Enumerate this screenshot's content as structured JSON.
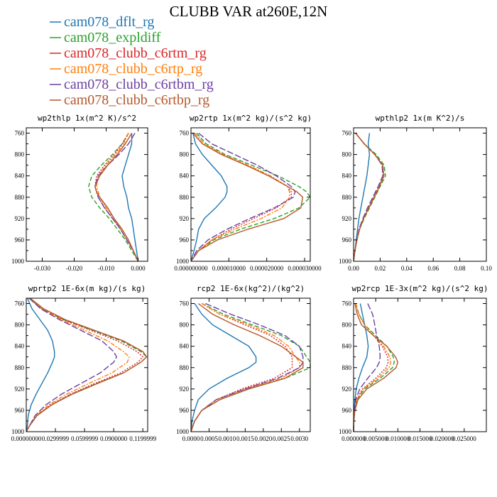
{
  "title": "CLUBB VAR at260E,12N",
  "colors": {
    "cam078_dflt_rg": "#1f77b4",
    "cam078_expldiff": "#2ca02c",
    "cam078_clubb_c6rtm_rg": "#d62728",
    "cam078_clubb_c6rtp_rg": "#ff7f0e",
    "cam078_clubb_c6rtbm_rg": "#6b3fa0",
    "cam078_clubb_c6rtbp_rg": "#b5582a"
  },
  "legend": [
    {
      "name": "cam078_dflt_rg",
      "color": "#1f77b4",
      "dash": "solid"
    },
    {
      "name": "cam078_expldiff",
      "color": "#2ca02c",
      "dash": "dash"
    },
    {
      "name": "cam078_clubb_c6rtm_rg",
      "color": "#d62728",
      "dash": "dot"
    },
    {
      "name": "cam078_clubb_c6rtp_rg",
      "color": "#ff7f0e",
      "dash": "dashdot"
    },
    {
      "name": "cam078_clubb_c6rtbm_rg",
      "color": "#6b3fa0",
      "dash": "longdash"
    },
    {
      "name": "cam078_clubb_c6rtbp_rg",
      "color": "#b5582a",
      "dash": "solid"
    }
  ],
  "chart_data": [
    {
      "type": "line",
      "title": "wp2thlp  1x(m^2 K)/s^2",
      "xlim": [
        -0.035,
        0.003
      ],
      "ylim": [
        1000,
        750
      ],
      "xticks": [
        -0.03,
        -0.02,
        -0.01,
        0.0
      ],
      "xtick_labels": [
        "-0.030",
        "-0.020",
        "-0.010",
        "0.000"
      ],
      "yticks": [
        760,
        800,
        840,
        880,
        920,
        960,
        1000
      ],
      "y": [
        760,
        780,
        800,
        820,
        840,
        860,
        870,
        880,
        900,
        920,
        940,
        960,
        980,
        1000
      ],
      "series": [
        {
          "name": "cam078_dflt_rg",
          "values": [
            -0.002,
            -0.002,
            -0.003,
            -0.004,
            -0.005,
            -0.0045,
            -0.004,
            -0.0035,
            -0.003,
            -0.002,
            -0.0015,
            -0.001,
            -0.0005,
            0.0
          ]
        },
        {
          "name": "cam078_expldiff",
          "values": [
            -0.003,
            -0.005,
            -0.008,
            -0.0115,
            -0.0145,
            -0.0155,
            -0.015,
            -0.0145,
            -0.012,
            -0.009,
            -0.0065,
            -0.004,
            -0.002,
            0.0
          ]
        },
        {
          "name": "cam078_clubb_c6rtm_rg",
          "values": [
            -0.003,
            -0.005,
            -0.0075,
            -0.0105,
            -0.013,
            -0.0135,
            -0.013,
            -0.0125,
            -0.0105,
            -0.008,
            -0.0055,
            -0.0035,
            -0.0015,
            0.0
          ]
        },
        {
          "name": "cam078_clubb_c6rtp_rg",
          "values": [
            -0.003,
            -0.0045,
            -0.007,
            -0.01,
            -0.0125,
            -0.013,
            -0.0125,
            -0.012,
            -0.01,
            -0.0075,
            -0.0055,
            -0.0035,
            -0.0015,
            0.0
          ]
        },
        {
          "name": "cam078_clubb_c6rtbm_rg",
          "values": [
            -0.001,
            -0.003,
            -0.006,
            -0.0095,
            -0.0125,
            -0.0135,
            -0.013,
            -0.0125,
            -0.0105,
            -0.008,
            -0.0055,
            -0.0035,
            -0.0015,
            0.0
          ]
        },
        {
          "name": "cam078_clubb_c6rtbp_rg",
          "values": [
            -0.002,
            -0.004,
            -0.0065,
            -0.0095,
            -0.012,
            -0.0135,
            -0.013,
            -0.012,
            -0.0095,
            -0.0075,
            -0.005,
            -0.003,
            -0.0015,
            0.0
          ]
        }
      ]
    },
    {
      "type": "line",
      "title": "wp2rtp  1x(m^2 kg)/(s^2 kg)",
      "xlim": [
        0.0,
        3.15e-05
      ],
      "ylim": [
        1000,
        750
      ],
      "xticks": [
        0.0,
        1e-05,
        2e-05,
        3e-05
      ],
      "xtick_labels": [
        "0.000000000",
        "0.000010000",
        "0.000020000",
        "0.000030000"
      ],
      "yticks": [
        760,
        800,
        840,
        880,
        920,
        960,
        1000
      ],
      "y": [
        760,
        780,
        800,
        820,
        840,
        860,
        870,
        880,
        900,
        920,
        940,
        960,
        980,
        1000
      ],
      "series": [
        {
          "name": "cam078_dflt_rg",
          "values": [
            5e-07,
            1.2e-06,
            3e-06,
            5.5e-06,
            8e-06,
            9.5e-06,
            9.5e-06,
            9e-06,
            6.5e-06,
            3.5e-06,
            2e-06,
            1.5e-06,
            8e-07,
            0.0
          ]
        },
        {
          "name": "cam078_expldiff",
          "values": [
            1.5e-06,
            4e-06,
            9e-06,
            1.6e-05,
            2.3e-05,
            2.85e-05,
            3.05e-05,
            3.15e-05,
            2.85e-05,
            2.2e-05,
            1.3e-05,
            6e-06,
            2e-06,
            0.0
          ]
        },
        {
          "name": "cam078_clubb_c6rtm_rg",
          "values": [
            1e-06,
            3.5e-06,
            8.5e-06,
            1.5e-05,
            2.1e-05,
            2.55e-05,
            2.65e-05,
            2.65e-05,
            2.25e-05,
            1.65e-05,
            1.05e-05,
            5.5e-06,
            2e-06,
            0.0
          ]
        },
        {
          "name": "cam078_clubb_c6rtp_rg",
          "values": [
            1e-06,
            3.5e-06,
            8.5e-06,
            1.5e-05,
            2.1e-05,
            2.55e-05,
            2.6e-05,
            2.6e-05,
            2.4e-05,
            1.85e-05,
            1.15e-05,
            5.5e-06,
            2e-06,
            0.0
          ]
        },
        {
          "name": "cam078_clubb_c6rtbm_rg",
          "values": [
            2e-06,
            5.5e-06,
            1.15e-05,
            1.75e-05,
            2.25e-05,
            2.65e-05,
            2.75e-05,
            2.7e-05,
            2.2e-05,
            1.55e-05,
            9.5e-06,
            4.5e-06,
            1.5e-06,
            0.0
          ]
        },
        {
          "name": "cam078_clubb_c6rtbp_rg",
          "values": [
            5e-07,
            3e-06,
            8e-06,
            1.45e-05,
            2.05e-05,
            2.55e-05,
            2.8e-05,
            2.95e-05,
            2.9e-05,
            2.45e-05,
            1.5e-05,
            7e-06,
            2e-06,
            0.0
          ]
        }
      ]
    },
    {
      "type": "line",
      "title": "wpthlp2  1x(m K^2)/s",
      "xlim": [
        0.0,
        0.1
      ],
      "ylim": [
        1000,
        750
      ],
      "xticks": [
        0.0,
        0.02,
        0.04,
        0.06,
        0.08,
        0.1
      ],
      "xtick_labels": [
        "0.00",
        "0.02",
        "0.04",
        "0.06",
        "0.08",
        "0.10"
      ],
      "yticks": [
        760,
        800,
        840,
        880,
        920,
        960,
        1000
      ],
      "y": [
        760,
        780,
        800,
        820,
        840,
        860,
        880,
        900,
        920,
        940,
        960,
        980,
        1000
      ],
      "series": [
        {
          "name": "cam078_dflt_rg",
          "values": [
            0.012,
            0.011,
            0.012,
            0.011,
            0.01,
            0.0085,
            0.007,
            0.0055,
            0.004,
            0.003,
            0.002,
            0.001,
            0.0
          ]
        },
        {
          "name": "cam078_expldiff",
          "values": [
            0.0015,
            0.008,
            0.017,
            0.023,
            0.024,
            0.02,
            0.016,
            0.012,
            0.008,
            0.0045,
            0.0025,
            0.001,
            0.0
          ]
        },
        {
          "name": "cam078_clubb_c6rtm_rg",
          "values": [
            0.0015,
            0.008,
            0.016,
            0.022,
            0.023,
            0.0195,
            0.0155,
            0.0115,
            0.0075,
            0.0045,
            0.0025,
            0.001,
            0.0
          ]
        },
        {
          "name": "cam078_clubb_c6rtp_rg",
          "values": [
            0.0015,
            0.008,
            0.016,
            0.0215,
            0.0225,
            0.019,
            0.015,
            0.011,
            0.0075,
            0.0045,
            0.0025,
            0.001,
            0.0
          ]
        },
        {
          "name": "cam078_clubb_c6rtbm_rg",
          "values": [
            0.0015,
            0.008,
            0.016,
            0.0215,
            0.022,
            0.0185,
            0.0145,
            0.0105,
            0.007,
            0.004,
            0.0025,
            0.001,
            0.0
          ]
        },
        {
          "name": "cam078_clubb_c6rtbp_rg",
          "values": [
            0.0015,
            0.008,
            0.016,
            0.022,
            0.0225,
            0.0195,
            0.0155,
            0.0115,
            0.0075,
            0.0045,
            0.0025,
            0.001,
            0.0
          ]
        }
      ]
    },
    {
      "type": "line",
      "title": "wprtp2  1E-6x(m kg)/(s kg)",
      "xlim": [
        0.0,
        0.125
      ],
      "ylim": [
        1000,
        750
      ],
      "xticks": [
        0.0,
        0.03,
        0.06,
        0.09,
        0.12
      ],
      "xtick_labels": [
        "0.00000000",
        "0.0299999",
        "0.0599999",
        "0.0900000",
        "0.1199999"
      ],
      "yticks": [
        760,
        800,
        840,
        880,
        920,
        960,
        1000
      ],
      "y": [
        750,
        770,
        790,
        810,
        830,
        850,
        860,
        870,
        890,
        910,
        930,
        950,
        970,
        990,
        1000
      ],
      "series": [
        {
          "name": "cam078_dflt_rg",
          "values": [
            0.001,
            0.006,
            0.014,
            0.022,
            0.027,
            0.029,
            0.029,
            0.027,
            0.022,
            0.016,
            0.01,
            0.005,
            0.002,
            0.001,
            0.0
          ]
        },
        {
          "name": "cam078_expldiff",
          "values": [
            0.003,
            0.016,
            0.038,
            0.068,
            0.098,
            0.118,
            0.124,
            0.118,
            0.1,
            0.072,
            0.046,
            0.026,
            0.011,
            0.003,
            0.0
          ]
        },
        {
          "name": "cam078_clubb_c6rtm_rg",
          "values": [
            0.003,
            0.016,
            0.038,
            0.066,
            0.094,
            0.114,
            0.12,
            0.115,
            0.097,
            0.07,
            0.045,
            0.025,
            0.011,
            0.003,
            0.0
          ]
        },
        {
          "name": "cam078_clubb_c6rtp_rg",
          "values": [
            0.003,
            0.016,
            0.036,
            0.06,
            0.084,
            0.1,
            0.106,
            0.104,
            0.088,
            0.064,
            0.041,
            0.023,
            0.01,
            0.003,
            0.0
          ]
        },
        {
          "name": "cam078_clubb_c6rtbm_rg",
          "values": [
            0.003,
            0.015,
            0.034,
            0.056,
            0.078,
            0.09,
            0.093,
            0.09,
            0.076,
            0.056,
            0.036,
            0.02,
            0.009,
            0.003,
            0.0
          ]
        },
        {
          "name": "cam078_clubb_c6rtbp_rg",
          "values": [
            0.004,
            0.018,
            0.04,
            0.07,
            0.1,
            0.12,
            0.124,
            0.118,
            0.1,
            0.073,
            0.047,
            0.026,
            0.011,
            0.003,
            0.0
          ]
        }
      ]
    },
    {
      "type": "line",
      "title": "rcp2  1E-6x(kg^2)/(kg^2)",
      "xlim": [
        0.0,
        0.0033
      ],
      "ylim": [
        1000,
        750
      ],
      "xticks": [
        0.0,
        0.0005,
        0.001,
        0.0015,
        0.002,
        0.0025,
        0.003
      ],
      "xtick_labels": [
        "0.0000",
        "0.0005",
        "0.0010",
        "0.0015",
        "0.0020",
        "0.0025",
        "0.0030"
      ],
      "yticks": [
        760,
        800,
        840,
        880,
        920,
        960,
        1000
      ],
      "y": [
        760,
        780,
        800,
        820,
        840,
        860,
        870,
        880,
        900,
        920,
        940,
        960,
        980,
        1000
      ],
      "series": [
        {
          "name": "cam078_dflt_rg",
          "values": [
            0.0001,
            0.0003,
            0.0006,
            0.0011,
            0.0016,
            0.0018,
            0.0018,
            0.0016,
            0.001,
            0.0005,
            0.0002,
            0.0001,
            3e-05,
            0.0
          ]
        },
        {
          "name": "cam078_expldiff",
          "values": [
            0.0003,
            0.0009,
            0.0017,
            0.0025,
            0.003,
            0.0032,
            0.0033,
            0.0033,
            0.0026,
            0.0016,
            0.0008,
            0.0003,
            0.0001,
            0.0
          ]
        },
        {
          "name": "cam078_clubb_c6rtm_rg",
          "values": [
            0.0003,
            0.0008,
            0.0015,
            0.0022,
            0.0026,
            0.0028,
            0.0028,
            0.0028,
            0.0023,
            0.0014,
            0.0007,
            0.0003,
            0.0001,
            0.0
          ]
        },
        {
          "name": "cam078_clubb_c6rtp_rg",
          "values": [
            0.0003,
            0.0008,
            0.0016,
            0.0023,
            0.0027,
            0.0029,
            0.003,
            0.003,
            0.0025,
            0.0015,
            0.0007,
            0.0003,
            0.0001,
            0.0
          ]
        },
        {
          "name": "cam078_clubb_c6rtbm_rg",
          "values": [
            0.0004,
            0.0011,
            0.0019,
            0.0026,
            0.003,
            0.0031,
            0.0031,
            0.003,
            0.0024,
            0.0015,
            0.0007,
            0.0003,
            0.0001,
            0.0
          ]
        },
        {
          "name": "cam078_clubb_c6rtbp_rg",
          "values": [
            0.0002,
            0.0006,
            0.0012,
            0.0019,
            0.0025,
            0.0029,
            0.0031,
            0.0031,
            0.0026,
            0.0016,
            0.0008,
            0.0003,
            0.0001,
            0.0
          ]
        }
      ]
    },
    {
      "type": "line",
      "title": "wp2rcp  1E-3x(m^2 kg)/(s^2 kg)",
      "xlim": [
        0.0,
        0.03
      ],
      "ylim": [
        1000,
        750
      ],
      "xticks": [
        0.0,
        0.005,
        0.01,
        0.015,
        0.02,
        0.025
      ],
      "xtick_labels": [
        "0.000000",
        "0.005000",
        "0.010000",
        "0.015000",
        "0.020000",
        "0.025000"
      ],
      "yticks": [
        760,
        800,
        840,
        880,
        920,
        960,
        1000
      ],
      "y": [
        760,
        780,
        800,
        820,
        840,
        860,
        870,
        880,
        900,
        920,
        940,
        960,
        980,
        1000
      ],
      "series": [
        {
          "name": "cam078_dflt_rg",
          "values": [
            0.0015,
            0.002,
            0.0025,
            0.003,
            0.0033,
            0.003,
            0.0025,
            0.002,
            0.0012,
            0.0006,
            0.0003,
            0.0001,
            3e-05,
            0.0
          ]
        },
        {
          "name": "cam078_expldiff",
          "values": [
            0.0005,
            0.0012,
            0.0025,
            0.005,
            0.0075,
            0.009,
            0.0092,
            0.0088,
            0.006,
            0.0025,
            0.0008,
            0.0002,
            5e-05,
            0.0
          ]
        },
        {
          "name": "cam078_clubb_c6rtm_rg",
          "values": [
            0.0005,
            0.0012,
            0.0025,
            0.0045,
            0.0065,
            0.0077,
            0.0078,
            0.0074,
            0.005,
            0.002,
            0.0007,
            0.0002,
            5e-05,
            0.0
          ]
        },
        {
          "name": "cam078_clubb_c6rtp_rg",
          "values": [
            0.0005,
            0.0012,
            0.0025,
            0.0045,
            0.0068,
            0.0082,
            0.0084,
            0.008,
            0.0055,
            0.0022,
            0.0007,
            0.0002,
            5e-05,
            0.0
          ]
        },
        {
          "name": "cam078_clubb_c6rtbm_rg",
          "values": [
            0.0032,
            0.0043,
            0.0048,
            0.0052,
            0.0058,
            0.006,
            0.0058,
            0.0052,
            0.0032,
            0.0014,
            0.0005,
            0.0002,
            5e-05,
            0.0
          ]
        },
        {
          "name": "cam078_clubb_c6rtbp_rg",
          "values": [
            0.0003,
            0.0008,
            0.0018,
            0.0045,
            0.0075,
            0.0095,
            0.01,
            0.0096,
            0.0068,
            0.003,
            0.001,
            0.0003,
            5e-05,
            0.0
          ]
        }
      ]
    }
  ]
}
